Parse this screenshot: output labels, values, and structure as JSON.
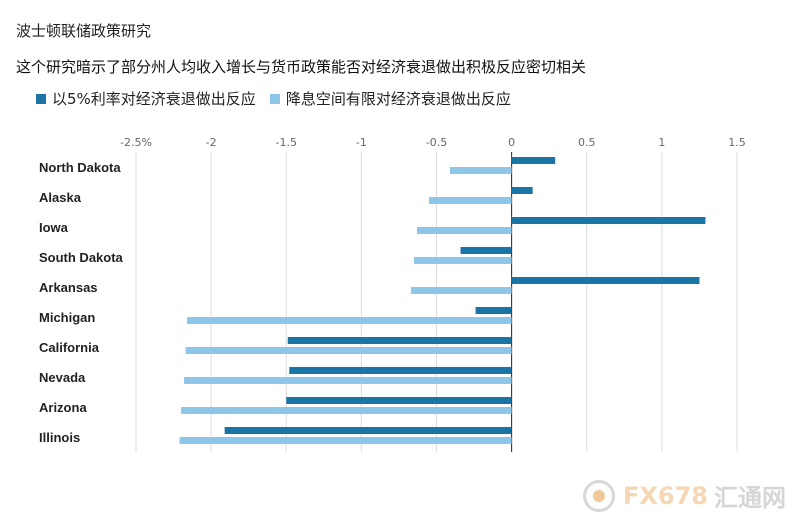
{
  "header": {
    "title": "波士顿联储政策研究",
    "subtitle": "这个研究暗示了部分州人均收入增长与货币政策能否对经济衰退做出积极反应密切相关"
  },
  "legend": {
    "items": [
      {
        "label": "以5%利率对经济衰退做出反应",
        "color": "#1a74a6"
      },
      {
        "label": "降息空间有限对经济衰退做出反应",
        "color": "#8ec6ea"
      }
    ]
  },
  "watermark": {
    "brand": "FX678",
    "suffix": "汇通网"
  },
  "chart_data": {
    "type": "bar",
    "orientation": "horizontal",
    "categories": [
      "North Dakota",
      "Alaska",
      "Iowa",
      "South Dakota",
      "Arkansas",
      "Michigan",
      "California",
      "Nevada",
      "Arizona",
      "Illinois"
    ],
    "series": [
      {
        "name": "以5%利率对经济衰退做出反应",
        "color": "#1a74a6",
        "values": [
          0.29,
          0.14,
          1.29,
          -0.34,
          1.25,
          -0.24,
          -1.49,
          -1.48,
          -1.5,
          -1.91
        ]
      },
      {
        "name": "降息空间有限对经济衰退做出反应",
        "color": "#8ec6ea",
        "values": [
          -0.41,
          -0.55,
          -0.63,
          -0.65,
          -0.67,
          -2.16,
          -2.17,
          -2.18,
          -2.2,
          -2.21
        ]
      }
    ],
    "xlim": [
      -2.5,
      1.5
    ],
    "xticks": [
      -2.5,
      -2,
      -1.5,
      -1,
      -0.5,
      0,
      0.5,
      1,
      1.5
    ],
    "xtick_labels": [
      "-2.5%",
      "-2",
      "-1.5",
      "-1",
      "-0.5",
      "0",
      "0.5",
      "1",
      "1.5"
    ],
    "xlabel": "",
    "ylabel": "",
    "grid": true,
    "legend_position": "top-left"
  }
}
